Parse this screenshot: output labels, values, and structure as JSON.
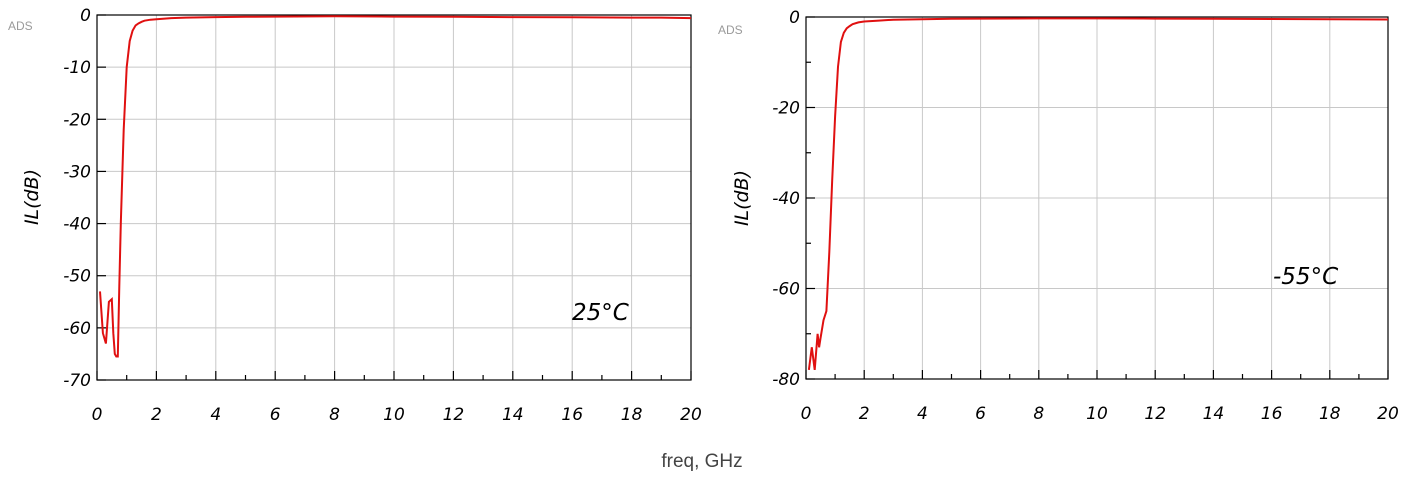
{
  "figure": {
    "shared_xlabel": "freq, GHz"
  },
  "chart_data": [
    {
      "type": "line",
      "watermark": "ADS",
      "ylabel": "IL(dB)",
      "annotation": "25°C",
      "xlim": [
        0,
        20
      ],
      "ylim": [
        -70,
        0
      ],
      "xticks": [
        0,
        2,
        4,
        6,
        8,
        10,
        12,
        14,
        16,
        18,
        20
      ],
      "xtick_labels": [
        "0",
        "2",
        "4",
        "6",
        "8",
        "10",
        "12",
        "14",
        "16",
        "18",
        "20"
      ],
      "yticks": [
        0,
        -10,
        -20,
        -30,
        -40,
        -50,
        -60,
        -70
      ],
      "ytick_labels": [
        "0",
        "-10",
        "-20",
        "-30",
        "-40",
        "-50",
        "-60",
        "-70"
      ],
      "grid": true,
      "line_color": "#e01010",
      "series": [
        {
          "x": [
            0.1,
            0.2,
            0.3,
            0.4,
            0.5,
            0.55,
            0.6,
            0.65,
            0.7,
            0.75,
            0.8,
            0.9,
            1.0,
            1.1,
            1.2,
            1.3,
            1.4,
            1.5,
            1.6,
            1.8,
            2.0,
            2.5,
            3.0,
            4.0,
            5.0,
            6.0,
            8.0,
            10.0,
            12.0,
            14.0,
            16.0,
            18.0,
            19.0,
            20.0
          ],
          "y": [
            -53,
            -61,
            -63,
            -55,
            -54.5,
            -61,
            -65,
            -65.5,
            -65.5,
            -52,
            -40,
            -22,
            -10,
            -5,
            -3,
            -2,
            -1.6,
            -1.3,
            -1.1,
            -0.9,
            -0.8,
            -0.6,
            -0.5,
            -0.4,
            -0.35,
            -0.3,
            -0.25,
            -0.3,
            -0.35,
            -0.4,
            -0.45,
            -0.5,
            -0.5,
            -0.6
          ]
        }
      ]
    },
    {
      "type": "line",
      "watermark": "ADS",
      "ylabel": "IL(dB)",
      "annotation": "-55°C",
      "xlim": [
        0,
        20
      ],
      "ylim": [
        -80,
        0
      ],
      "xticks": [
        0,
        2,
        4,
        6,
        8,
        10,
        12,
        14,
        16,
        18,
        20
      ],
      "xtick_labels": [
        "0",
        "2",
        "4",
        "6",
        "8",
        "10",
        "12",
        "14",
        "16",
        "18",
        "20"
      ],
      "yticks": [
        0,
        -20,
        -40,
        -60,
        -80
      ],
      "ytick_labels": [
        "0",
        "-20",
        "-40",
        "-60",
        "-80"
      ],
      "minor_yticks": [
        -10,
        -30,
        -50,
        -70
      ],
      "grid": true,
      "line_color": "#e01010",
      "series": [
        {
          "x": [
            0.1,
            0.2,
            0.3,
            0.4,
            0.45,
            0.5,
            0.6,
            0.7,
            0.8,
            0.9,
            1.0,
            1.1,
            1.2,
            1.3,
            1.4,
            1.5,
            1.6,
            1.8,
            2.0,
            2.5,
            3.0,
            4.0,
            5.0,
            6.0,
            8.0,
            10.0,
            12.0,
            14.0,
            16.0,
            18.0,
            20.0
          ],
          "y": [
            -78,
            -73,
            -78,
            -70,
            -73,
            -71,
            -67,
            -65,
            -52,
            -36,
            -22,
            -11,
            -5.5,
            -3.5,
            -2.5,
            -2,
            -1.6,
            -1.2,
            -1.0,
            -0.8,
            -0.6,
            -0.5,
            -0.4,
            -0.35,
            -0.3,
            -0.3,
            -0.35,
            -0.4,
            -0.45,
            -0.5,
            -0.55
          ]
        }
      ]
    }
  ]
}
